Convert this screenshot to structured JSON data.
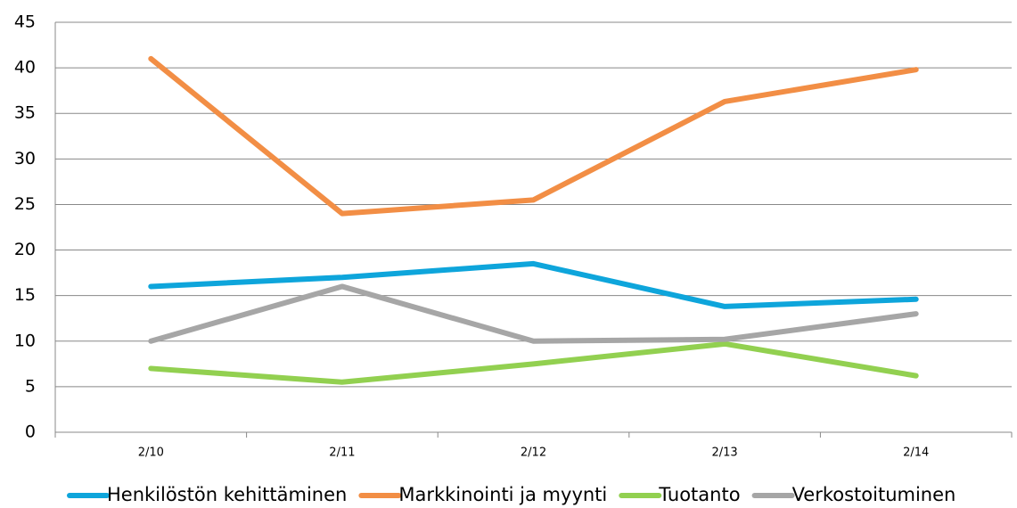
{
  "chart_data": {
    "type": "line",
    "categories": [
      "2/10",
      "2/11",
      "2/12",
      "2/13",
      "2/14"
    ],
    "series": [
      {
        "name": "Henkilöstön kehittäminen",
        "color": "#0ea5db",
        "values": [
          16,
          17,
          18.5,
          13.8,
          14.6
        ]
      },
      {
        "name": "Markkinointi ja myynti",
        "color": "#f28e45",
        "values": [
          41,
          24,
          25.5,
          36.3,
          39.8
        ]
      },
      {
        "name": "Tuotanto",
        "color": "#92d050",
        "values": [
          7,
          5.5,
          7.5,
          9.7,
          6.2
        ]
      },
      {
        "name": "Verkostoituminen",
        "color": "#a6a6a6",
        "values": [
          10,
          16,
          10,
          10.2,
          13
        ]
      }
    ],
    "ylim": [
      0,
      45
    ],
    "yticks": [
      0,
      5,
      10,
      15,
      20,
      25,
      30,
      35,
      40,
      45
    ],
    "grid": true,
    "legend": "bottom"
  }
}
